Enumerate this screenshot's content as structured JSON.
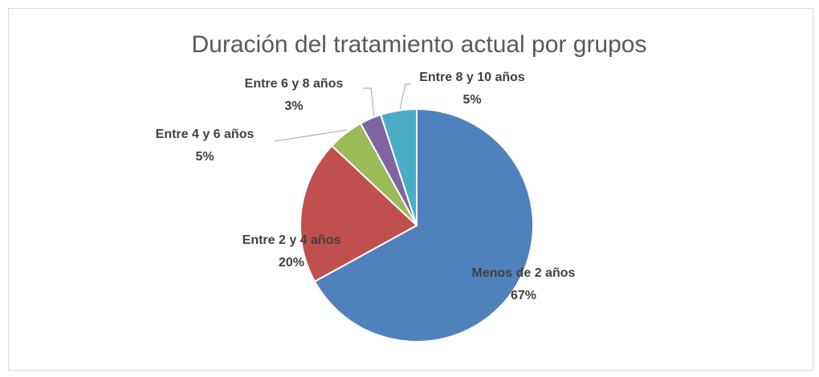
{
  "chart_data": {
    "type": "pie",
    "title": "Duración del tratamiento actual por grupos",
    "categories": [
      "Menos de 2 años",
      "Entre 2 y 4 años",
      "Entre 4 y 6 años",
      "Entre 6 y 8 años",
      "Entre 8 y 10 años"
    ],
    "values": [
      67,
      20,
      5,
      3,
      5
    ],
    "value_labels": [
      "67%",
      "20%",
      "5%",
      "3%",
      "5%"
    ],
    "colors": [
      "#4f81bd",
      "#c0504d",
      "#9bbb59",
      "#8064a2",
      "#4bacc6"
    ]
  }
}
